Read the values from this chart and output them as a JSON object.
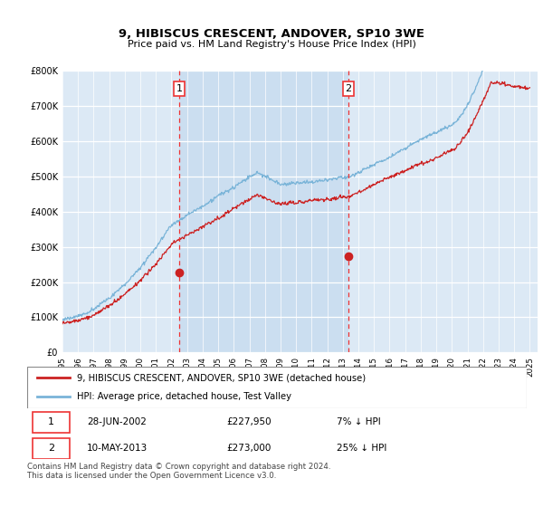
{
  "title": "9, HIBISCUS CRESCENT, ANDOVER, SP10 3WE",
  "subtitle": "Price paid vs. HM Land Registry's House Price Index (HPI)",
  "ylim": [
    0,
    800000
  ],
  "xlim_start": 1995,
  "xlim_end": 2025.5,
  "hpi_color": "#7ab4d8",
  "price_color": "#cc2222",
  "marker1_x": 2002.49,
  "marker1_y": 227950,
  "marker2_x": 2013.36,
  "marker2_y": 273000,
  "vline_color": "#ee3333",
  "shade_color": "#c8ddf0",
  "legend_line1": "9, HIBISCUS CRESCENT, ANDOVER, SP10 3WE (detached house)",
  "legend_line2": "HPI: Average price, detached house, Test Valley",
  "footnote": "Contains HM Land Registry data © Crown copyright and database right 2024.\nThis data is licensed under the Open Government Licence v3.0.",
  "background_color": "#dce9f5"
}
